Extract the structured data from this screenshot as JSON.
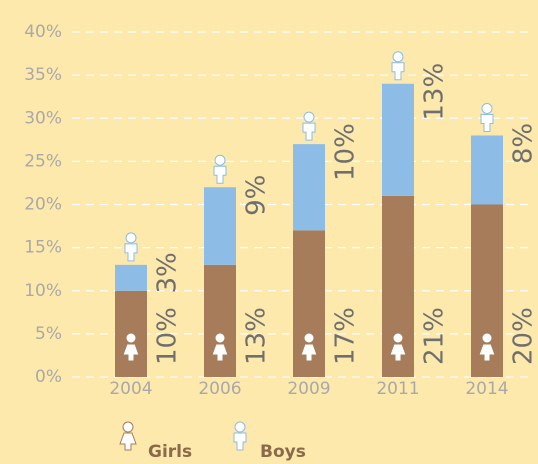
{
  "chart_data": {
    "type": "stacked_bar",
    "categories": [
      "2004",
      "2006",
      "2009",
      "2011",
      "2014"
    ],
    "series": [
      {
        "name": "Girls",
        "color": "#a67c5b",
        "values": [
          10,
          13,
          17,
          21,
          20
        ],
        "value_labels": [
          "10%",
          "13%",
          "17%",
          "21%",
          "20%"
        ]
      },
      {
        "name": "Boys",
        "color": "#8dbce6",
        "values": [
          3,
          9,
          10,
          13,
          8
        ],
        "value_labels": [
          "3%",
          "9%",
          "10%",
          "13%",
          "8%"
        ]
      }
    ],
    "ylim": [
      0,
      40
    ],
    "yticks": [
      {
        "value": 0,
        "label": "0%"
      },
      {
        "value": 5,
        "label": "5%"
      },
      {
        "value": 10,
        "label": "10%"
      },
      {
        "value": 15,
        "label": "15%"
      },
      {
        "value": 20,
        "label": "20%"
      },
      {
        "value": 25,
        "label": "25%"
      },
      {
        "value": 30,
        "label": "30%"
      },
      {
        "value": 35,
        "label": "35%"
      },
      {
        "value": 40,
        "label": "40%"
      }
    ],
    "grid": true
  }
}
